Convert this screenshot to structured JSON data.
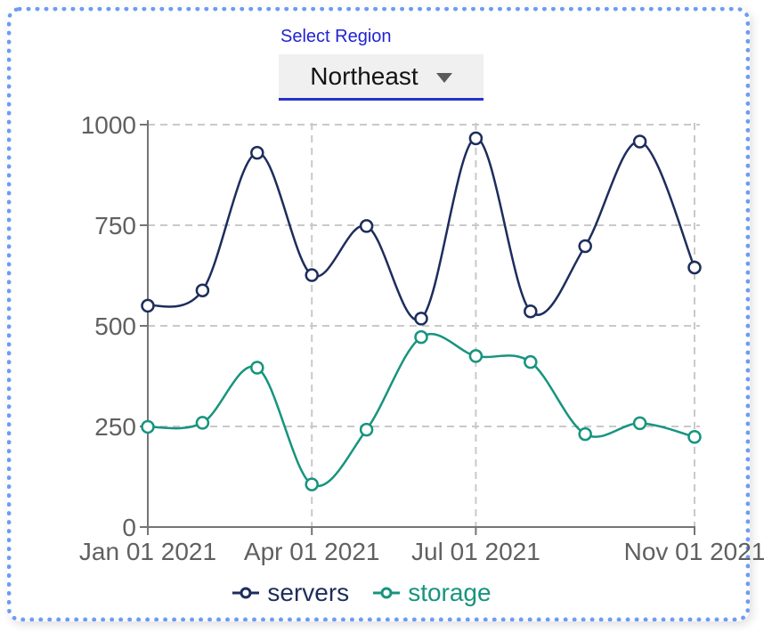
{
  "page": {
    "border_color": "#6d9cf4",
    "background": "#ffffff"
  },
  "controls": {
    "select_label": "Select Region",
    "selected_region": "Northeast",
    "dropdown_background": "#f0f0f0",
    "dropdown_underline_color": "#2633c8",
    "label_color": "#2222d4"
  },
  "chart_data": {
    "type": "line",
    "title": "",
    "xlabel": "",
    "ylabel": "",
    "x": [
      "Jan 01 2021",
      "Feb 01 2021",
      "Mar 01 2021",
      "Apr 01 2021",
      "May 01 2021",
      "Jun 01 2021",
      "Jul 01 2021",
      "Aug 01 2021",
      "Sep 01 2021",
      "Oct 01 2021",
      "Nov 01 2021"
    ],
    "series": [
      {
        "name": "servers",
        "color": "#1d2d5c",
        "values": [
          550,
          588,
          930,
          626,
          748,
          518,
          966,
          536,
          698,
          958,
          645
        ]
      },
      {
        "name": "storage",
        "color": "#17947e",
        "values": [
          249,
          259,
          396,
          106,
          242,
          472,
          425,
          410,
          231,
          258,
          224
        ]
      }
    ],
    "y_ticks": [
      0,
      250,
      500,
      750,
      1000
    ],
    "x_tick_labels": [
      {
        "index": 0,
        "label": "Jan 01 2021"
      },
      {
        "index": 3,
        "label": "Apr 01 2021"
      },
      {
        "index": 6,
        "label": "Jul 01 2021"
      },
      {
        "index": 10,
        "label": "Nov 01 2021"
      }
    ],
    "ylim": [
      0,
      1000
    ],
    "grid": true,
    "legend_position": "bottom",
    "axis_color": "#757575",
    "tick_label_color": "#606060",
    "gridline_color": "#c9c9c9",
    "marker_fill": "#ffffff"
  }
}
